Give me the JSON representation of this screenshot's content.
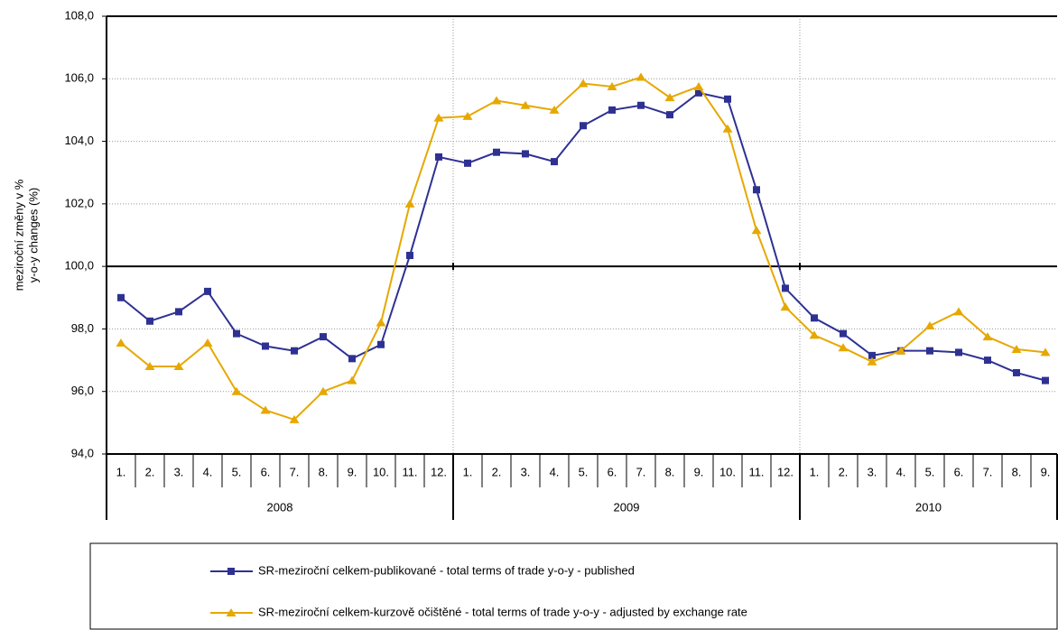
{
  "chart_data": {
    "type": "line",
    "ylabel": [
      "meziroční změny v %",
      "y-o-y changes (%)"
    ],
    "categories": [
      "1.",
      "2.",
      "3.",
      "4.",
      "5.",
      "6.",
      "7.",
      "8.",
      "9.",
      "10.",
      "11.",
      "12.",
      "1.",
      "2.",
      "3.",
      "4.",
      "5.",
      "6.",
      "7.",
      "8.",
      "9.",
      "10.",
      "11.",
      "12.",
      "1.",
      "2.",
      "3.",
      "4.",
      "5.",
      "6.",
      "7.",
      "8.",
      "9."
    ],
    "year_labels": [
      "2008",
      "2009",
      "2010"
    ],
    "series": [
      {
        "name": "SR-meziroční celkem-publikované - total terms of trade y-o-y - published",
        "color": "#2e3192",
        "marker": "square",
        "values": [
          99.0,
          98.25,
          98.55,
          99.2,
          97.85,
          97.45,
          97.3,
          97.75,
          97.05,
          97.5,
          100.35,
          103.5,
          103.3,
          103.65,
          103.6,
          103.35,
          104.5,
          105.0,
          105.15,
          104.85,
          105.55,
          105.35,
          102.45,
          99.3,
          98.35,
          97.85,
          97.15,
          97.3,
          97.3,
          97.25,
          97.0,
          96.6,
          96.35
        ]
      },
      {
        "name": "SR-meziroční celkem-kurzově očištěné - total terms of trade y-o-y - adjusted by exchange rate",
        "color": "#e6a800",
        "marker": "triangle",
        "values": [
          97.55,
          96.8,
          96.8,
          97.55,
          96.0,
          95.4,
          95.1,
          96.0,
          96.35,
          98.2,
          102.0,
          104.75,
          104.8,
          105.3,
          105.15,
          105.0,
          105.85,
          105.75,
          106.05,
          105.4,
          105.75,
          104.4,
          101.15,
          98.7,
          97.8,
          97.4,
          96.95,
          97.3,
          98.1,
          98.55,
          97.75,
          97.35,
          97.25
        ]
      }
    ],
    "ylim": [
      94,
      108
    ],
    "yticks": [
      {
        "value": 94,
        "label": "94,0"
      },
      {
        "value": 96,
        "label": "96,0"
      },
      {
        "value": 98,
        "label": "98,0"
      },
      {
        "value": 100,
        "label": "100,0"
      },
      {
        "value": 102,
        "label": "102,0"
      },
      {
        "value": 104,
        "label": "104,0"
      },
      {
        "value": 106,
        "label": "106,0"
      },
      {
        "value": 108,
        "label": "108,0"
      }
    ],
    "reference_line": 100,
    "grid": true
  }
}
